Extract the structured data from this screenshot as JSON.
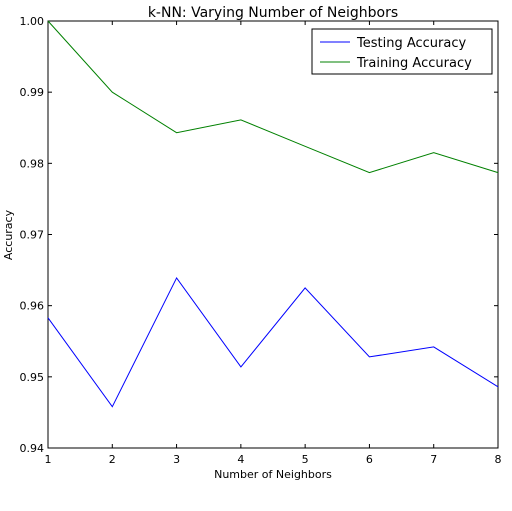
{
  "chart_data": {
    "type": "line",
    "title": "k-NN: Varying Number of Neighbors",
    "xlabel": "Number of Neighbors",
    "ylabel": "Accuracy",
    "x": [
      1,
      2,
      3,
      4,
      5,
      6,
      7,
      8
    ],
    "xlim": [
      1,
      8
    ],
    "ylim": [
      0.94,
      1.0
    ],
    "xticks": [
      1,
      2,
      3,
      4,
      5,
      6,
      7,
      8
    ],
    "yticks": [
      "0.94",
      "0.95",
      "0.96",
      "0.97",
      "0.98",
      "0.99",
      "1.00"
    ],
    "grid": false,
    "legend_position": "top-right",
    "series": [
      {
        "name": "Testing Accuracy",
        "color": "#0000ff",
        "values": [
          0.9583,
          0.9458,
          0.9639,
          0.9514,
          0.9625,
          0.9528,
          0.9542,
          0.9486
        ]
      },
      {
        "name": "Training Accuracy",
        "color": "#008000",
        "values": [
          1.0,
          0.99,
          0.9843,
          0.9861,
          0.9824,
          0.9787,
          0.9815,
          0.9787
        ]
      }
    ]
  }
}
